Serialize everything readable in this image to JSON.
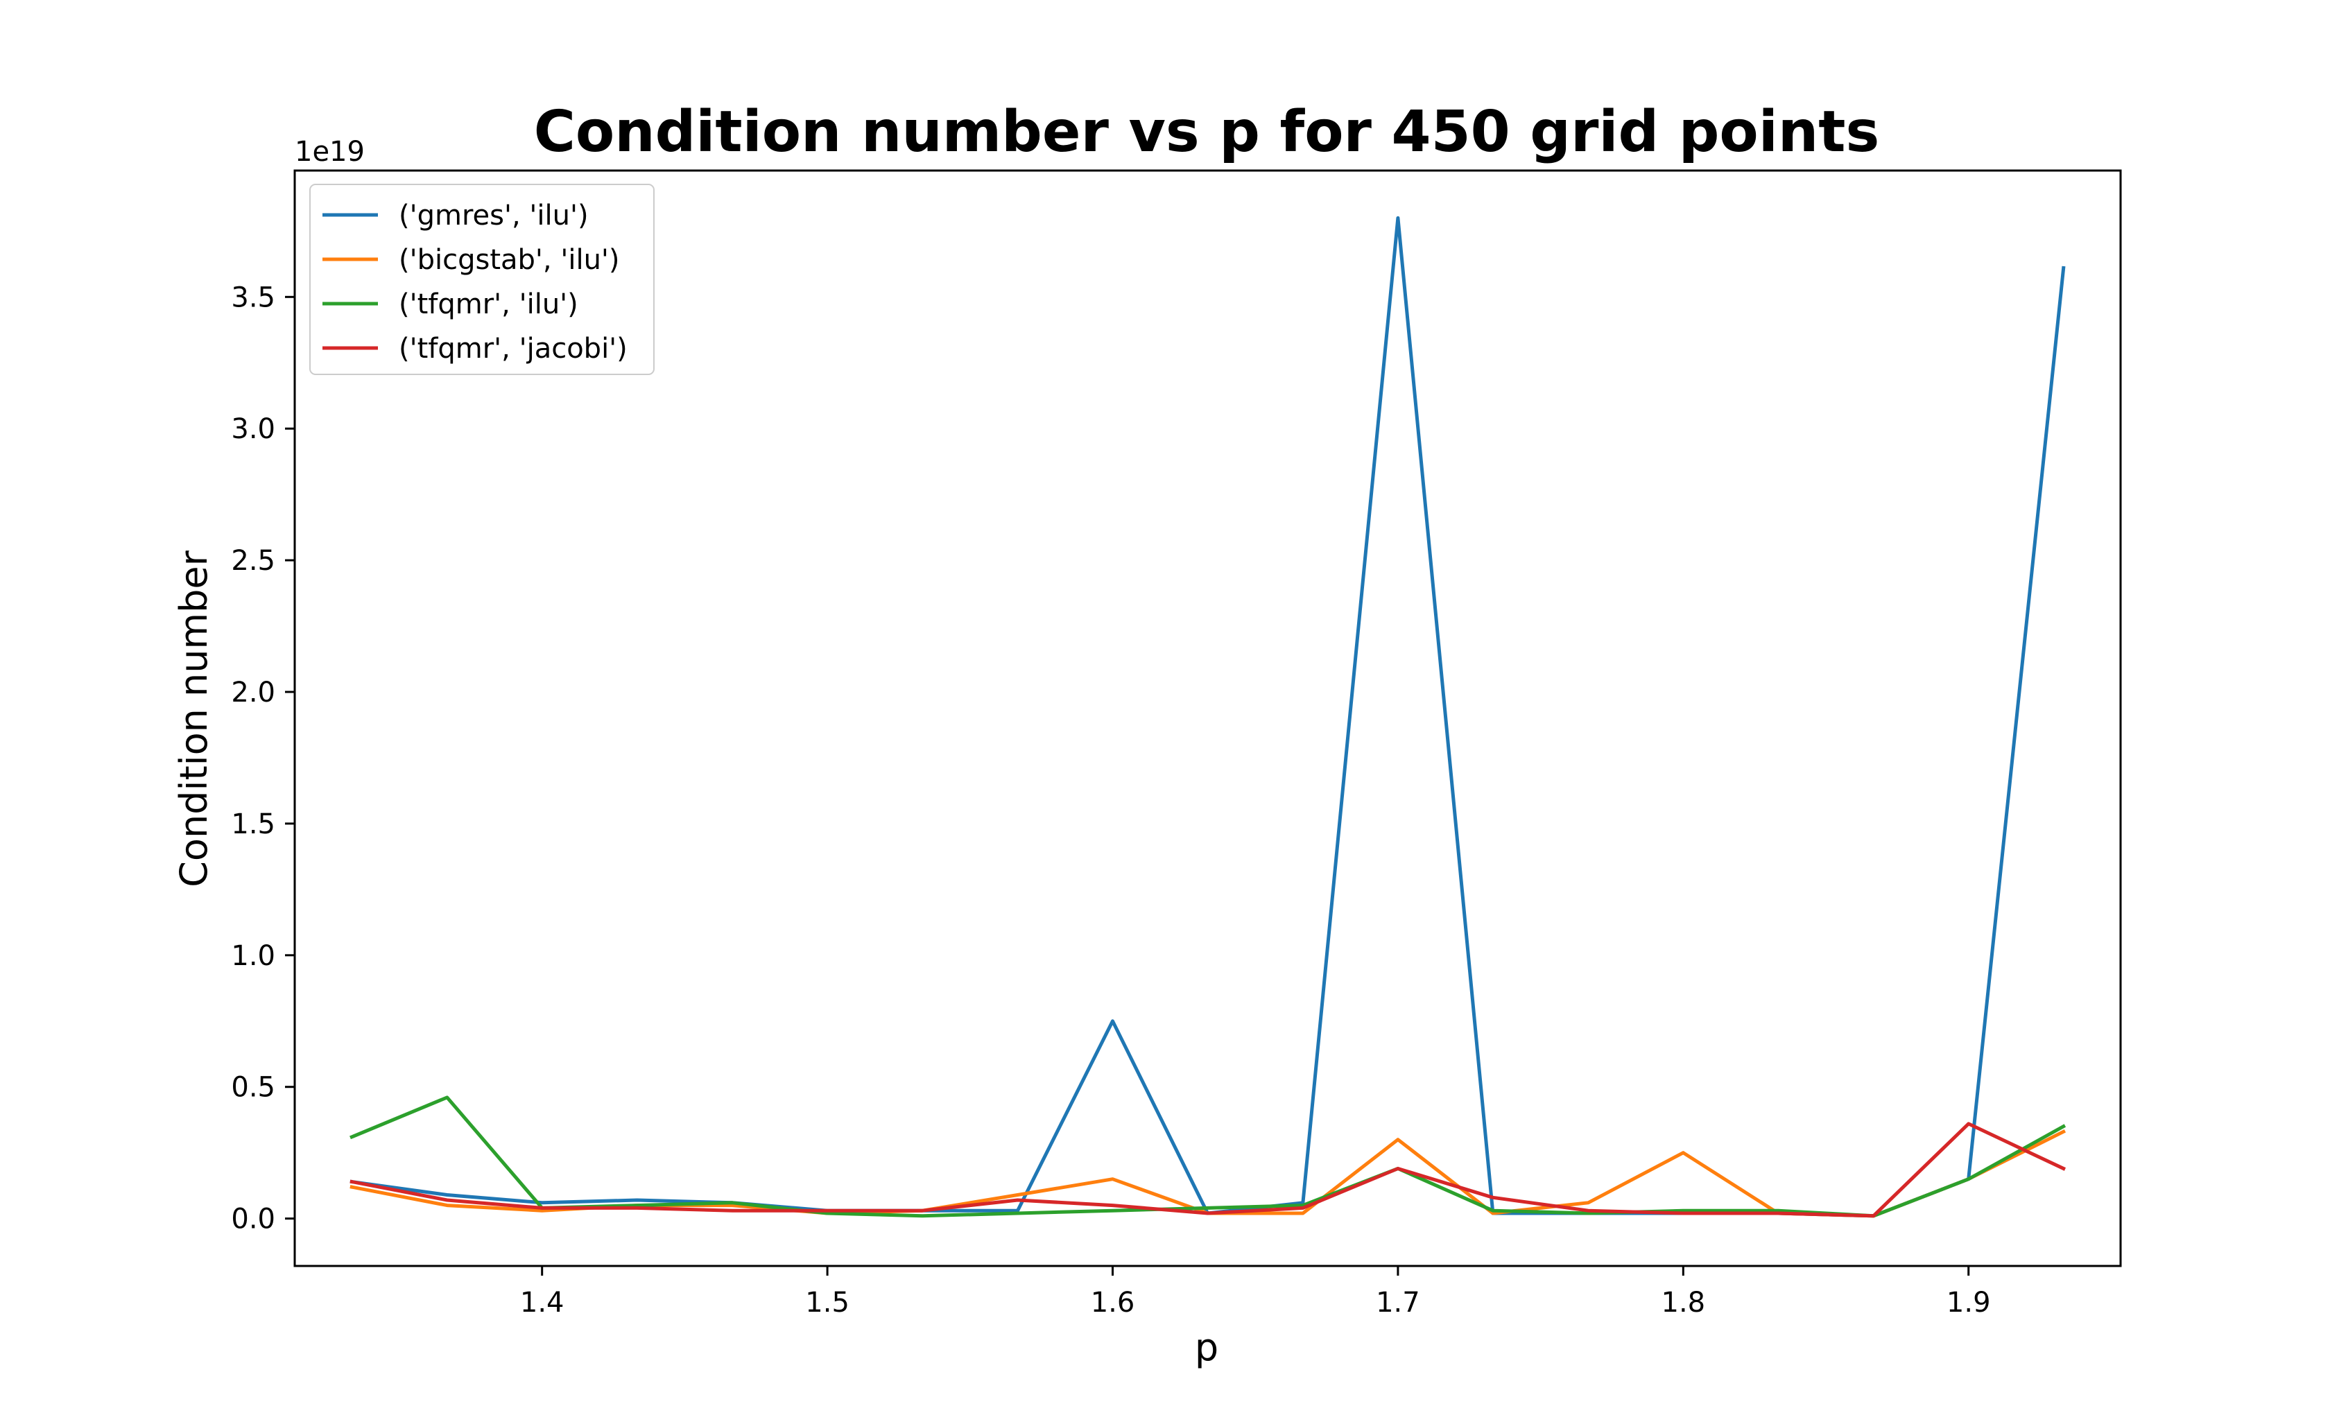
{
  "chart_data": {
    "type": "line",
    "title": "Condition number vs p for 450 grid points",
    "xlabel": "p",
    "ylabel": "Condition number",
    "y_offset_label": "1e19",
    "xlim": [
      1.3133,
      1.9533
    ],
    "ylim": [
      -0.18,
      3.98
    ],
    "x_ticks": [
      1.4,
      1.5,
      1.6,
      1.7,
      1.8,
      1.9
    ],
    "x_tick_labels": [
      "1.4",
      "1.5",
      "1.6",
      "1.7",
      "1.8",
      "1.9"
    ],
    "y_ticks": [
      0.0,
      0.5,
      1.0,
      1.5,
      2.0,
      2.5,
      3.0,
      3.5
    ],
    "y_tick_labels": [
      "0.0",
      "0.5",
      "1.0",
      "1.5",
      "2.0",
      "2.5",
      "3.0",
      "3.5"
    ],
    "grid": false,
    "legend_position": "top-left",
    "x": [
      1.3333,
      1.3667,
      1.4,
      1.4333,
      1.4667,
      1.5,
      1.5333,
      1.5667,
      1.6,
      1.6333,
      1.6667,
      1.7,
      1.7333,
      1.7667,
      1.8,
      1.8333,
      1.8667,
      1.9,
      1.9333
    ],
    "series": [
      {
        "name": "('gmres', 'ilu')",
        "color": "#1f77b4",
        "values": [
          0.14,
          0.09,
          0.06,
          0.07,
          0.06,
          0.03,
          0.03,
          0.03,
          0.75,
          0.02,
          0.06,
          3.8,
          0.02,
          0.02,
          0.02,
          0.02,
          0.01,
          0.15,
          3.61
        ]
      },
      {
        "name": "('bicgstab', 'ilu')",
        "color": "#ff7f0e",
        "values": [
          0.12,
          0.05,
          0.03,
          0.05,
          0.05,
          0.02,
          0.03,
          0.09,
          0.15,
          0.02,
          0.02,
          0.3,
          0.02,
          0.06,
          0.25,
          0.02,
          0.01,
          0.15,
          0.33
        ]
      },
      {
        "name": "('tfqmr', 'ilu')",
        "color": "#2ca02c",
        "values": [
          0.31,
          0.46,
          0.04,
          0.05,
          0.06,
          0.02,
          0.01,
          0.02,
          0.03,
          0.04,
          0.05,
          0.19,
          0.03,
          0.02,
          0.03,
          0.03,
          0.01,
          0.15,
          0.35
        ]
      },
      {
        "name": "('tfqmr', 'jacobi')",
        "color": "#d62728",
        "values": [
          0.14,
          0.07,
          0.04,
          0.04,
          0.03,
          0.03,
          0.03,
          0.07,
          0.05,
          0.02,
          0.04,
          0.19,
          0.08,
          0.03,
          0.02,
          0.02,
          0.01,
          0.36,
          0.19
        ]
      }
    ]
  }
}
